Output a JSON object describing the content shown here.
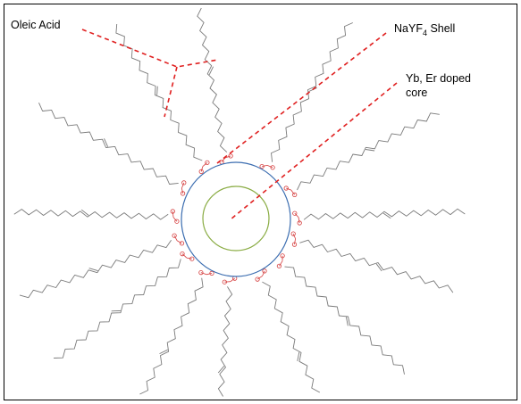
{
  "labels": {
    "oleic_acid": "Oleic Acid",
    "shell_main": "NaYF",
    "shell_sub": "4",
    "shell_tail": " Shell",
    "core_line1": "Yb, Er doped",
    "core_line2": "core"
  },
  "colors": {
    "frame": "#000000",
    "shell_stroke": "#3b6db0",
    "core_stroke": "#8aac44",
    "chain": "#7a7a7a",
    "oxygen": "#d43a3a",
    "leader": "#e02020"
  },
  "ligand_angles_deg": [
    -100,
    -122,
    -150,
    -178,
    160,
    142,
    118,
    95,
    65,
    42,
    18,
    -2,
    -28,
    -60
  ]
}
